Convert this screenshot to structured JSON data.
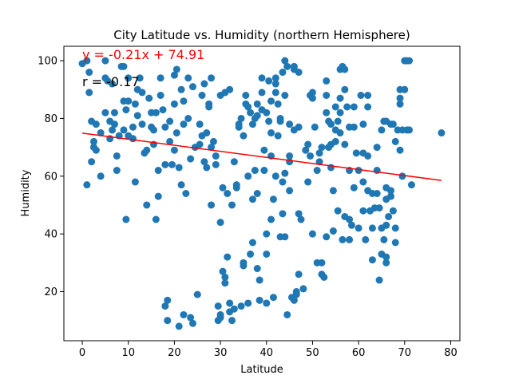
{
  "chart_data": {
    "type": "scatter",
    "title": "City Latitude vs. Humidity (northern Hemisphere)",
    "xlabel": "Latitude",
    "ylabel": "Humidity",
    "xlim": [
      -4,
      82
    ],
    "ylim": [
      3,
      105
    ],
    "xticks": [
      0,
      10,
      20,
      30,
      40,
      50,
      60,
      70,
      80
    ],
    "yticks": [
      20,
      40,
      60,
      80,
      100
    ],
    "grid": false,
    "point_color": "#1f77b4",
    "regression": {
      "equation": "y = -0.21x + 74.91",
      "r_label": "r = -0.17",
      "slope": -0.21,
      "intercept": 74.91,
      "x_range": [
        0,
        78
      ],
      "color": "#ff0000"
    },
    "points": [
      [
        0,
        99
      ],
      [
        1,
        100
      ],
      [
        1.5,
        89
      ],
      [
        1.5,
        96
      ],
      [
        1,
        57
      ],
      [
        2,
        65
      ],
      [
        2,
        79
      ],
      [
        2.5,
        72
      ],
      [
        3,
        78
      ],
      [
        3,
        69
      ],
      [
        2.5,
        70
      ],
      [
        4,
        60
      ],
      [
        4,
        75
      ],
      [
        5,
        82
      ],
      [
        5,
        94
      ],
      [
        5,
        100
      ],
      [
        5.5,
        93
      ],
      [
        6,
        79
      ],
      [
        6,
        73
      ],
      [
        6.5,
        92
      ],
      [
        7,
        78
      ],
      [
        6.5,
        76
      ],
      [
        7,
        82
      ],
      [
        7.5,
        67
      ],
      [
        7.5,
        62
      ],
      [
        8,
        74
      ],
      [
        8.5,
        98
      ],
      [
        9,
        98
      ],
      [
        9,
        86
      ],
      [
        9,
        76
      ],
      [
        9.5,
        83
      ],
      [
        10,
        94
      ],
      [
        10,
        74
      ],
      [
        10,
        86
      ],
      [
        9.5,
        45
      ],
      [
        11,
        73
      ],
      [
        11,
        77
      ],
      [
        11.5,
        58
      ],
      [
        11.5,
        85
      ],
      [
        12,
        81
      ],
      [
        12,
        90
      ],
      [
        12.5,
        94
      ],
      [
        13,
        89
      ],
      [
        13,
        78
      ],
      [
        13.5,
        68
      ],
      [
        14,
        69
      ],
      [
        14,
        50
      ],
      [
        14.5,
        87
      ],
      [
        15,
        82
      ],
      [
        15,
        77
      ],
      [
        15.5,
        76
      ],
      [
        15.5,
        71
      ],
      [
        16,
        82
      ],
      [
        16,
        45
      ],
      [
        16.5,
        53
      ],
      [
        16.5,
        62
      ],
      [
        17,
        88
      ],
      [
        17,
        94
      ],
      [
        17.5,
        83
      ],
      [
        18,
        77
      ],
      [
        18,
        64
      ],
      [
        18,
        15
      ],
      [
        18.5,
        17
      ],
      [
        18.5,
        10
      ],
      [
        19,
        79
      ],
      [
        19,
        72
      ],
      [
        19.5,
        64
      ],
      [
        20,
        95
      ],
      [
        20,
        85
      ],
      [
        20,
        69
      ],
      [
        20.5,
        75
      ],
      [
        20.5,
        97
      ],
      [
        21,
        8
      ],
      [
        21,
        63
      ],
      [
        21.5,
        57
      ],
      [
        21.5,
        90
      ],
      [
        22,
        86
      ],
      [
        22,
        78
      ],
      [
        22,
        12
      ],
      [
        22.5,
        54
      ],
      [
        23,
        80
      ],
      [
        23,
        94
      ],
      [
        23.5,
        11
      ],
      [
        23.5,
        66
      ],
      [
        24,
        91
      ],
      [
        24,
        9
      ],
      [
        24.5,
        70
      ],
      [
        25,
        19
      ],
      [
        25.5,
        71
      ],
      [
        25.5,
        78
      ],
      [
        26,
        88
      ],
      [
        26,
        74
      ],
      [
        26.5,
        92
      ],
      [
        26.5,
        65
      ],
      [
        27,
        63
      ],
      [
        27,
        75
      ],
      [
        27.5,
        85
      ],
      [
        27.5,
        84
      ],
      [
        28,
        94
      ],
      [
        28,
        70
      ],
      [
        28,
        50
      ],
      [
        28.5,
        72
      ],
      [
        29,
        67
      ],
      [
        29,
        64
      ],
      [
        29.5,
        15
      ],
      [
        29.5,
        10
      ],
      [
        30,
        88
      ],
      [
        30,
        44
      ],
      [
        30,
        11
      ],
      [
        30,
        12
      ],
      [
        30.5,
        27
      ],
      [
        30.5,
        56
      ],
      [
        31,
        89
      ],
      [
        31,
        25
      ],
      [
        31,
        23
      ],
      [
        31.5,
        54
      ],
      [
        31.5,
        32
      ],
      [
        32,
        90
      ],
      [
        32,
        16
      ],
      [
        32,
        13
      ],
      [
        32.5,
        10
      ],
      [
        32.5,
        50
      ],
      [
        33,
        65
      ],
      [
        33,
        14
      ],
      [
        33.5,
        57
      ],
      [
        33.5,
        56
      ],
      [
        34,
        78
      ],
      [
        34,
        77
      ],
      [
        34.5,
        80
      ],
      [
        34.5,
        15
      ],
      [
        35,
        74
      ],
      [
        35,
        29
      ],
      [
        35,
        30
      ],
      [
        35.5,
        85
      ],
      [
        35.5,
        88
      ],
      [
        36,
        84
      ],
      [
        36,
        16
      ],
      [
        36,
        60
      ],
      [
        36.5,
        82
      ],
      [
        36.5,
        33
      ],
      [
        37,
        78
      ],
      [
        37,
        52
      ],
      [
        37,
        37
      ],
      [
        37.5,
        62
      ],
      [
        37.5,
        80
      ],
      [
        38,
        81
      ],
      [
        38,
        85
      ],
      [
        38,
        54
      ],
      [
        38,
        28
      ],
      [
        38.5,
        17
      ],
      [
        38.5,
        24
      ],
      [
        39,
        89
      ],
      [
        39,
        94
      ],
      [
        39,
        83
      ],
      [
        39.5,
        69
      ],
      [
        39.5,
        62
      ],
      [
        40,
        82
      ],
      [
        40,
        33
      ],
      [
        40,
        40
      ],
      [
        40,
        16
      ],
      [
        40.5,
        93
      ],
      [
        40.5,
        79
      ],
      [
        41,
        86
      ],
      [
        41,
        75
      ],
      [
        41,
        67
      ],
      [
        41,
        45
      ],
      [
        41.5,
        18
      ],
      [
        41.5,
        52
      ],
      [
        42,
        92
      ],
      [
        42,
        94
      ],
      [
        42,
        89
      ],
      [
        42,
        60
      ],
      [
        42.5,
        74
      ],
      [
        42.5,
        85
      ],
      [
        43,
        80
      ],
      [
        43,
        79
      ],
      [
        43,
        39
      ],
      [
        43.5,
        58
      ],
      [
        43.5,
        47
      ],
      [
        43.5,
        96
      ],
      [
        44,
        100
      ],
      [
        44,
        88
      ],
      [
        44,
        61
      ],
      [
        44,
        39
      ],
      [
        44.5,
        12
      ],
      [
        44.5,
        98
      ],
      [
        45,
        78
      ],
      [
        45,
        67
      ],
      [
        45,
        65
      ],
      [
        45,
        55
      ],
      [
        45.5,
        18
      ],
      [
        46,
        98
      ],
      [
        46,
        97
      ],
      [
        46,
        76
      ],
      [
        46,
        17
      ],
      [
        46.5,
        19
      ],
      [
        46.5,
        20
      ],
      [
        47,
        96
      ],
      [
        47,
        77
      ],
      [
        47,
        47
      ],
      [
        47,
        26
      ],
      [
        47.5,
        45
      ],
      [
        48,
        21
      ],
      [
        48.5,
        69
      ],
      [
        49,
        71
      ],
      [
        49,
        58
      ],
      [
        49.5,
        67
      ],
      [
        49.5,
        88
      ],
      [
        50,
        89
      ],
      [
        50,
        87
      ],
      [
        50,
        40
      ],
      [
        50.5,
        77
      ],
      [
        51,
        30
      ],
      [
        51,
        62
      ],
      [
        51.5,
        68
      ],
      [
        51.5,
        65
      ],
      [
        52,
        30
      ],
      [
        52,
        70
      ],
      [
        52,
        26
      ],
      [
        52.5,
        25
      ],
      [
        53,
        82
      ],
      [
        53,
        88
      ],
      [
        53,
        93
      ],
      [
        53,
        39
      ],
      [
        53.5,
        70
      ],
      [
        53.5,
        79
      ],
      [
        54,
        78
      ],
      [
        54,
        71
      ],
      [
        54,
        63
      ],
      [
        54.5,
        55
      ],
      [
        54.5,
        41
      ],
      [
        55,
        84
      ],
      [
        55,
        76
      ],
      [
        55,
        72
      ],
      [
        55.5,
        79
      ],
      [
        55.5,
        48
      ],
      [
        56,
        82
      ],
      [
        56,
        87
      ],
      [
        56,
        75
      ],
      [
        56,
        97
      ],
      [
        56.5,
        98
      ],
      [
        56.5,
        38
      ],
      [
        57,
        97
      ],
      [
        57,
        90
      ],
      [
        57,
        71
      ],
      [
        57,
        46
      ],
      [
        57.5,
        84
      ],
      [
        58,
        77
      ],
      [
        58,
        62
      ],
      [
        58,
        45
      ],
      [
        58,
        38
      ],
      [
        58.5,
        43
      ],
      [
        59,
        84
      ],
      [
        59,
        77
      ],
      [
        59,
        56
      ],
      [
        59.5,
        68
      ],
      [
        60,
        62
      ],
      [
        60,
        42
      ],
      [
        60.5,
        88
      ],
      [
        61,
        78
      ],
      [
        61,
        68
      ],
      [
        61,
        58
      ],
      [
        61,
        48
      ],
      [
        61.5,
        38
      ],
      [
        62,
        88
      ],
      [
        62,
        84
      ],
      [
        62,
        67
      ],
      [
        62,
        55
      ],
      [
        62.5,
        48
      ],
      [
        63,
        54
      ],
      [
        63,
        42
      ],
      [
        63,
        31
      ],
      [
        63.5,
        49
      ],
      [
        64,
        70
      ],
      [
        64,
        54
      ],
      [
        64,
        62
      ],
      [
        64.5,
        49
      ],
      [
        64.5,
        24
      ],
      [
        65,
        42
      ],
      [
        65,
        33
      ],
      [
        65,
        76
      ],
      [
        65.5,
        79
      ],
      [
        65.5,
        38
      ],
      [
        66,
        79
      ],
      [
        66,
        56
      ],
      [
        66,
        52
      ],
      [
        66,
        43
      ],
      [
        66,
        32
      ],
      [
        66,
        30
      ],
      [
        66.5,
        46
      ],
      [
        67,
        78
      ],
      [
        67,
        55
      ],
      [
        67,
        53
      ],
      [
        67.5,
        78
      ],
      [
        67.5,
        48
      ],
      [
        68,
        72
      ],
      [
        68,
        42
      ],
      [
        68,
        37
      ],
      [
        68.5,
        76
      ],
      [
        69,
        90
      ],
      [
        69,
        87
      ],
      [
        69,
        85
      ],
      [
        69,
        69
      ],
      [
        69.5,
        76
      ],
      [
        69.5,
        60
      ],
      [
        70,
        90
      ],
      [
        70,
        100
      ],
      [
        70.5,
        100
      ],
      [
        70.5,
        76
      ],
      [
        71,
        100
      ],
      [
        71,
        76
      ],
      [
        71.5,
        57
      ],
      [
        78,
        75
      ]
    ]
  }
}
